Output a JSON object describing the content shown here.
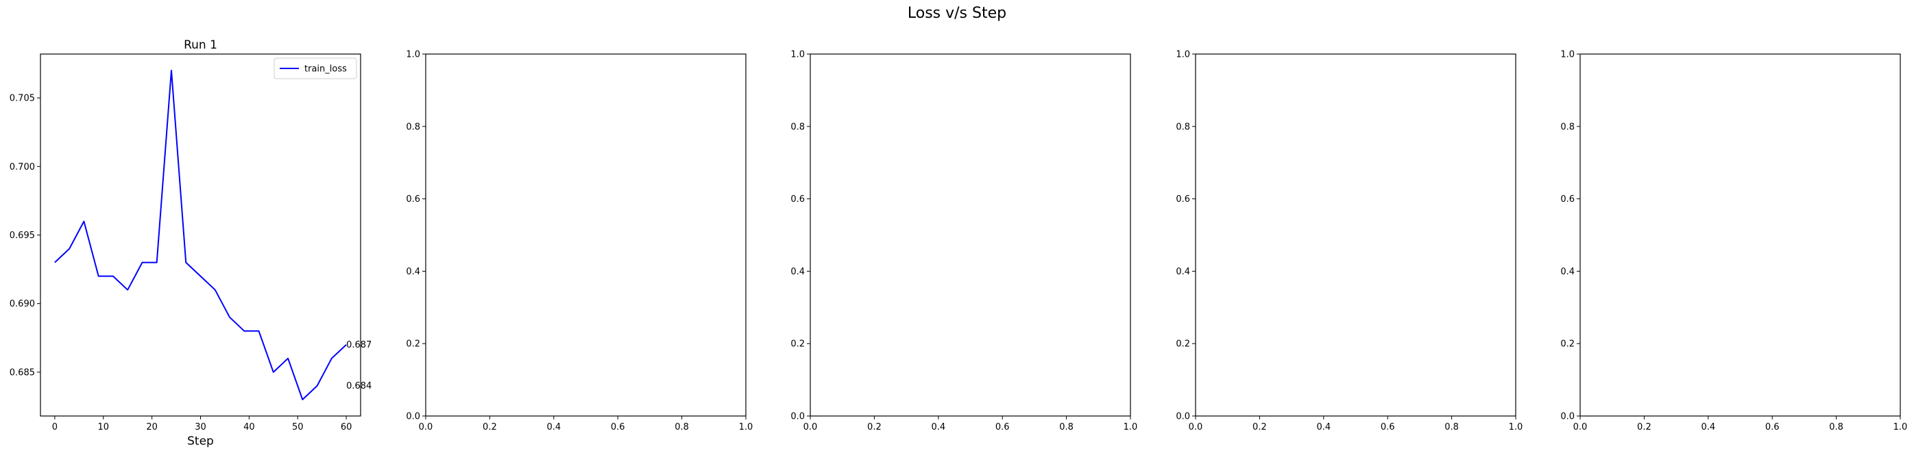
{
  "figure": {
    "title": "Loss v/s Step"
  },
  "chart_data": [
    {
      "type": "line",
      "title": "Run 1",
      "xlabel": "Step",
      "ylabel": "",
      "xlim": [
        -2.95,
        62.95
      ],
      "ylim": [
        0.6818,
        0.7082
      ],
      "xticks": [
        0,
        10,
        20,
        30,
        40,
        50,
        60
      ],
      "xtick_labels": [
        "0",
        "10",
        "20",
        "30",
        "40",
        "50",
        "60"
      ],
      "yticks": [
        0.685,
        0.69,
        0.695,
        0.7,
        0.705
      ],
      "ytick_labels": [
        "0.685",
        "0.690",
        "0.695",
        "0.700",
        "0.705"
      ],
      "grid": false,
      "legend": {
        "position": "top-right",
        "entries": [
          "train_loss"
        ]
      },
      "series": [
        {
          "name": "train_loss",
          "color": "#0000ff",
          "x": [
            0,
            3,
            6,
            9,
            12,
            15,
            18,
            21,
            24,
            27,
            30,
            33,
            36,
            39,
            42,
            45,
            48,
            51,
            54,
            57,
            60
          ],
          "y": [
            0.693,
            0.694,
            0.696,
            0.692,
            0.692,
            0.691,
            0.693,
            0.693,
            0.707,
            0.693,
            0.692,
            0.691,
            0.689,
            0.688,
            0.688,
            0.685,
            0.686,
            0.683,
            0.684,
            0.686,
            0.687
          ]
        }
      ],
      "annotations": [
        {
          "text": "0.687",
          "x": 60,
          "y": 0.687
        },
        {
          "text": "0.684",
          "x": 60,
          "y": 0.684
        }
      ]
    },
    {
      "type": "line",
      "title": "",
      "xlabel": "",
      "ylabel": "",
      "xlim": [
        0,
        1
      ],
      "ylim": [
        0,
        1
      ],
      "xticks": [
        0,
        0.2,
        0.4,
        0.6,
        0.8,
        1.0
      ],
      "xtick_labels": [
        "0.0",
        "0.2",
        "0.4",
        "0.6",
        "0.8",
        "1.0"
      ],
      "yticks": [
        0,
        0.2,
        0.4,
        0.6,
        0.8,
        1.0
      ],
      "ytick_labels": [
        "0.0",
        "0.2",
        "0.4",
        "0.6",
        "0.8",
        "1.0"
      ],
      "grid": false,
      "series": []
    },
    {
      "type": "line",
      "title": "",
      "xlabel": "",
      "ylabel": "",
      "xlim": [
        0,
        1
      ],
      "ylim": [
        0,
        1
      ],
      "xticks": [
        0,
        0.2,
        0.4,
        0.6,
        0.8,
        1.0
      ],
      "xtick_labels": [
        "0.0",
        "0.2",
        "0.4",
        "0.6",
        "0.8",
        "1.0"
      ],
      "yticks": [
        0,
        0.2,
        0.4,
        0.6,
        0.8,
        1.0
      ],
      "ytick_labels": [
        "0.0",
        "0.2",
        "0.4",
        "0.6",
        "0.8",
        "1.0"
      ],
      "grid": false,
      "series": []
    },
    {
      "type": "line",
      "title": "",
      "xlabel": "",
      "ylabel": "",
      "xlim": [
        0,
        1
      ],
      "ylim": [
        0,
        1
      ],
      "xticks": [
        0,
        0.2,
        0.4,
        0.6,
        0.8,
        1.0
      ],
      "xtick_labels": [
        "0.0",
        "0.2",
        "0.4",
        "0.6",
        "0.8",
        "1.0"
      ],
      "yticks": [
        0,
        0.2,
        0.4,
        0.6,
        0.8,
        1.0
      ],
      "ytick_labels": [
        "0.0",
        "0.2",
        "0.4",
        "0.6",
        "0.8",
        "1.0"
      ],
      "grid": false,
      "series": []
    },
    {
      "type": "line",
      "title": "",
      "xlabel": "",
      "ylabel": "",
      "xlim": [
        0,
        1
      ],
      "ylim": [
        0,
        1
      ],
      "xticks": [
        0,
        0.2,
        0.4,
        0.6,
        0.8,
        1.0
      ],
      "xtick_labels": [
        "0.0",
        "0.2",
        "0.4",
        "0.6",
        "0.8",
        "1.0"
      ],
      "yticks": [
        0,
        0.2,
        0.4,
        0.6,
        0.8,
        1.0
      ],
      "ytick_labels": [
        "0.0",
        "0.2",
        "0.4",
        "0.6",
        "0.8",
        "1.0"
      ],
      "grid": false,
      "series": []
    }
  ]
}
